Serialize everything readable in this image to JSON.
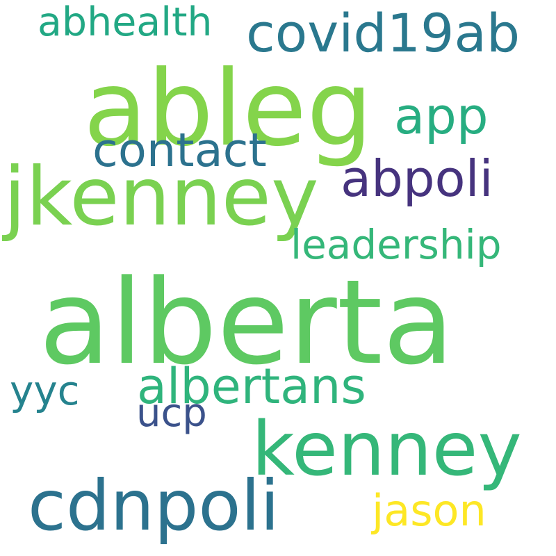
{
  "words": {
    "alberta": {
      "text": "alberta",
      "color": "#5ec962"
    },
    "ableg": {
      "text": "ableg",
      "color": "#84d44b"
    },
    "jkenney": {
      "text": "jkenney",
      "color": "#7ad151"
    },
    "kenney": {
      "text": "kenney",
      "color": "#35b779"
    },
    "cdnpoli": {
      "text": "cdnpoli",
      "color": "#2c728e"
    },
    "covid19ab": {
      "text": "covid19ab",
      "color": "#2a788e"
    },
    "abpoli": {
      "text": "abpoli",
      "color": "#46337e"
    },
    "albertans": {
      "text": "albertans",
      "color": "#2fb47c"
    },
    "contact": {
      "text": "contact",
      "color": "#2c728e"
    },
    "app": {
      "text": "app",
      "color": "#27ad81"
    },
    "leadership": {
      "text": "leadership",
      "color": "#35b779"
    },
    "jason": {
      "text": "jason",
      "color": "#fde725"
    },
    "abhealth": {
      "text": "abhealth",
      "color": "#22a884"
    },
    "yyc": {
      "text": "yyc",
      "color": "#25838e"
    },
    "ucp": {
      "text": "ucp",
      "color": "#3b528b"
    }
  }
}
